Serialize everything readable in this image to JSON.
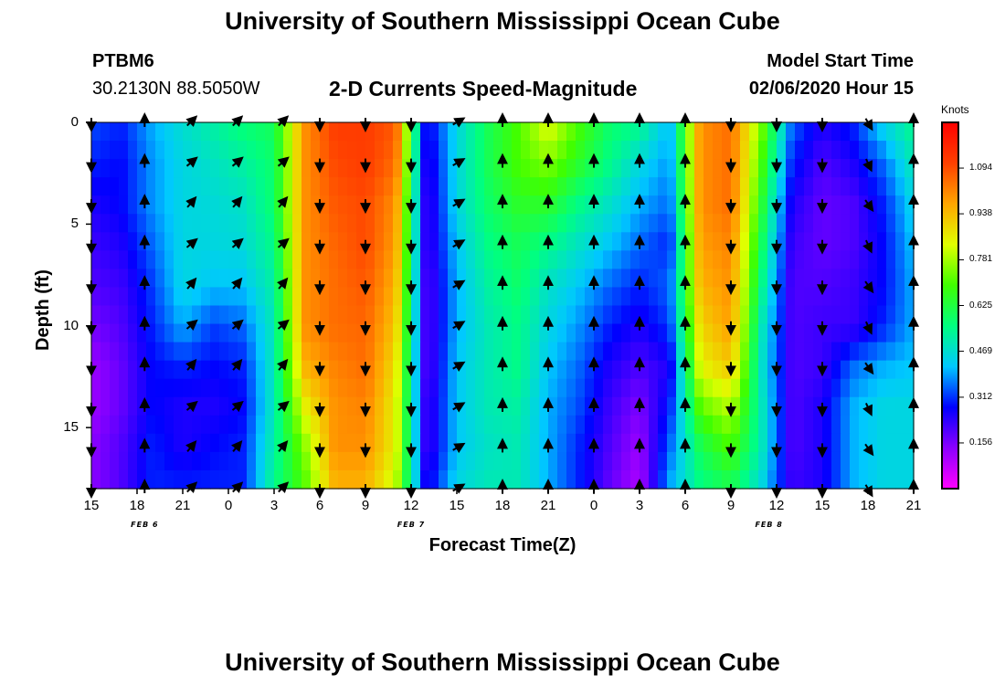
{
  "header": {
    "title": "University of Southern Mississippi Ocean Cube",
    "station_id": "PTBM6",
    "station_coords": "30.2130N 88.5050W",
    "plot_title": "2-D Currents Speed-Magnitude",
    "model_label": "Model Start Time",
    "model_time": "02/06/2020 Hour 15"
  },
  "footer": {
    "title": "University of Southern Mississippi Ocean Cube"
  },
  "chart_data": {
    "type": "heatmap",
    "title": "2-D Currents Speed-Magnitude",
    "xlabel": "Forecast Time(Z)",
    "ylabel": "Depth (ft)",
    "x_ticks": [
      "15",
      "18",
      "21",
      "0",
      "3",
      "6",
      "9",
      "12",
      "15",
      "18",
      "21",
      "0",
      "3",
      "6",
      "9",
      "12",
      "15",
      "18",
      "21"
    ],
    "x_range_hours": [
      0,
      54
    ],
    "y_ticks": [
      "0",
      "5",
      "10",
      "15"
    ],
    "y_range_ft": [
      0,
      18
    ],
    "day_labels": [
      {
        "label": "FEB 6",
        "hour": 3.5
      },
      {
        "label": "FEB 7",
        "hour": 21
      },
      {
        "label": "FEB 8",
        "hour": 44.5
      }
    ],
    "colorbar": {
      "unit": "Knots",
      "ticks": [
        "1.094",
        "0.938",
        "0.781",
        "0.625",
        "0.469",
        "0.312",
        "0.156"
      ],
      "tick_values": [
        1.094,
        0.938,
        0.781,
        0.625,
        0.469,
        0.312,
        0.156
      ],
      "range": [
        0.0,
        1.25
      ],
      "colors": [
        "#ff00ff",
        "#8c00ff",
        "#0000ff",
        "#00c8ff",
        "#00ff80",
        "#40ff00",
        "#e0ff00",
        "#ffa500",
        "#ff4000",
        "#ff0000"
      ]
    },
    "speed_profile_hours": [
      0,
      2,
      4,
      6,
      8,
      10,
      12,
      14,
      16,
      18,
      20,
      22,
      24,
      26,
      28,
      30,
      32,
      34,
      36,
      38,
      40,
      42,
      44,
      46,
      48,
      50,
      52,
      54
    ],
    "depths_ft": [
      0,
      2,
      4,
      6,
      8,
      10,
      12,
      14,
      16,
      18
    ],
    "speed_knots": [
      [
        0.33,
        0.3,
        0.4,
        0.47,
        0.52,
        0.57,
        0.6,
        1.0,
        1.12,
        1.12,
        1.08,
        0.25,
        0.45,
        0.6,
        0.7,
        0.85,
        0.7,
        0.58,
        0.55,
        0.4,
        1.0,
        1.05,
        0.75,
        0.35,
        0.25,
        0.3,
        0.45,
        0.55
      ],
      [
        0.3,
        0.28,
        0.38,
        0.45,
        0.48,
        0.52,
        0.58,
        1.0,
        1.1,
        1.12,
        1.05,
        0.22,
        0.45,
        0.6,
        0.7,
        0.75,
        0.65,
        0.55,
        0.45,
        0.38,
        1.0,
        1.05,
        0.7,
        0.3,
        0.2,
        0.25,
        0.35,
        0.5
      ],
      [
        0.25,
        0.28,
        0.38,
        0.45,
        0.46,
        0.48,
        0.58,
        1.0,
        1.08,
        1.1,
        1.0,
        0.2,
        0.45,
        0.58,
        0.65,
        0.65,
        0.55,
        0.48,
        0.4,
        0.35,
        1.0,
        1.05,
        0.65,
        0.25,
        0.18,
        0.2,
        0.3,
        0.45
      ],
      [
        0.22,
        0.25,
        0.35,
        0.45,
        0.45,
        0.46,
        0.55,
        1.0,
        1.06,
        1.1,
        0.98,
        0.2,
        0.42,
        0.55,
        0.6,
        0.55,
        0.48,
        0.42,
        0.35,
        0.3,
        0.98,
        1.02,
        0.6,
        0.22,
        0.18,
        0.2,
        0.28,
        0.42
      ],
      [
        0.2,
        0.22,
        0.32,
        0.45,
        0.42,
        0.42,
        0.52,
        1.0,
        1.05,
        1.08,
        0.95,
        0.18,
        0.4,
        0.52,
        0.58,
        0.48,
        0.42,
        0.35,
        0.3,
        0.35,
        0.95,
        1.0,
        0.55,
        0.2,
        0.2,
        0.22,
        0.28,
        0.4
      ],
      [
        0.16,
        0.2,
        0.3,
        0.4,
        0.32,
        0.35,
        0.5,
        1.0,
        1.05,
        1.06,
        0.92,
        0.18,
        0.4,
        0.5,
        0.55,
        0.45,
        0.38,
        0.3,
        0.25,
        0.32,
        0.9,
        0.98,
        0.5,
        0.2,
        0.22,
        0.22,
        0.3,
        0.4
      ],
      [
        0.12,
        0.18,
        0.28,
        0.3,
        0.28,
        0.3,
        0.5,
        0.95,
        1.02,
        1.05,
        0.88,
        0.18,
        0.42,
        0.5,
        0.55,
        0.42,
        0.35,
        0.25,
        0.2,
        0.25,
        0.85,
        0.92,
        0.48,
        0.2,
        0.22,
        0.35,
        0.4,
        0.42
      ],
      [
        0.12,
        0.18,
        0.28,
        0.25,
        0.25,
        0.28,
        0.5,
        0.85,
        1.0,
        1.02,
        0.85,
        0.2,
        0.42,
        0.5,
        0.52,
        0.4,
        0.33,
        0.22,
        0.15,
        0.3,
        0.72,
        0.8,
        0.5,
        0.2,
        0.25,
        0.4,
        0.45,
        0.45
      ],
      [
        0.14,
        0.2,
        0.3,
        0.25,
        0.28,
        0.3,
        0.52,
        0.75,
        1.0,
        1.0,
        0.85,
        0.2,
        0.42,
        0.48,
        0.5,
        0.4,
        0.3,
        0.2,
        0.12,
        0.35,
        0.6,
        0.7,
        0.5,
        0.2,
        0.25,
        0.4,
        0.45,
        0.45
      ],
      [
        0.14,
        0.2,
        0.3,
        0.3,
        0.3,
        0.3,
        0.55,
        0.7,
        0.95,
        0.95,
        0.8,
        0.25,
        0.45,
        0.5,
        0.5,
        0.4,
        0.3,
        0.18,
        0.1,
        0.4,
        0.55,
        0.6,
        0.45,
        0.22,
        0.25,
        0.4,
        0.45,
        0.45
      ]
    ],
    "arrow_hours": [
      0,
      3.5,
      6.5,
      9.5,
      12.5,
      15,
      18,
      21,
      24,
      27,
      30,
      33,
      36,
      39,
      42,
      45,
      48,
      51,
      54
    ],
    "arrow_depths_ft": [
      0,
      2,
      4,
      6,
      8,
      10,
      12,
      14,
      16,
      18
    ],
    "direction_pattern_deg": [
      180,
      0,
      45,
      45,
      45,
      180,
      180,
      180,
      60,
      0,
      0,
      0,
      0,
      0,
      180,
      180,
      180,
      150,
      0
    ]
  }
}
